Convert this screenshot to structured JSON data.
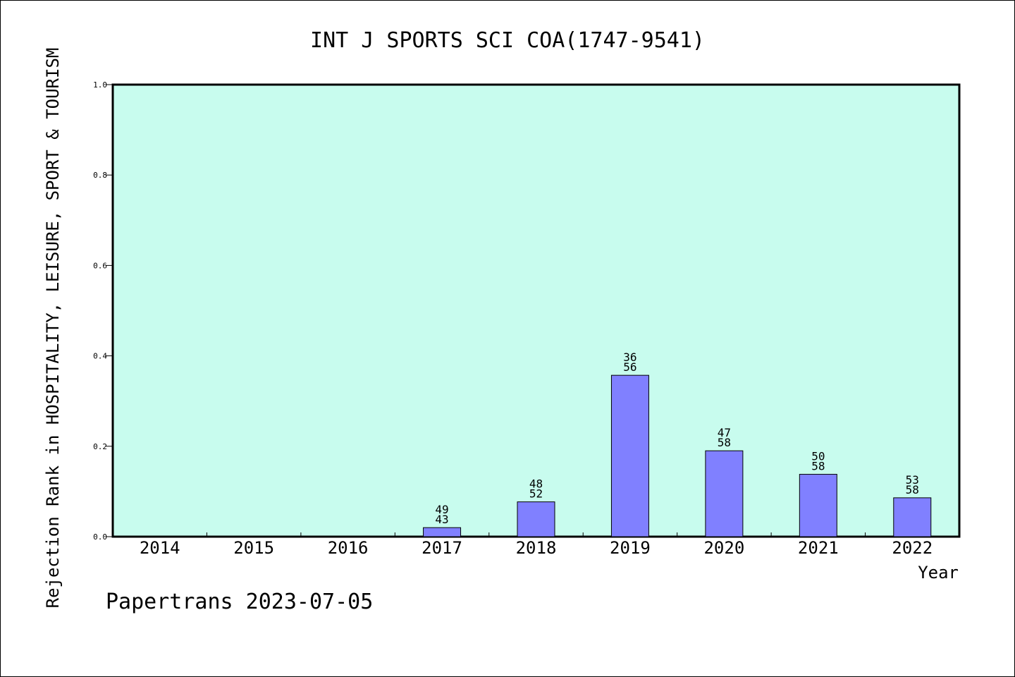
{
  "chart_data": {
    "type": "bar",
    "title": "INT J SPORTS SCI COA(1747-9541)",
    "ylabel": "Rejection Rank in HOSPITALITY, LEISURE, SPORT & TOURISM",
    "xlabel": "Year",
    "ylim": [
      0,
      1.0
    ],
    "yticks": [
      "0.0",
      "0.2",
      "0.4",
      "0.6",
      "0.8",
      "1.0"
    ],
    "categories": [
      "2014",
      "2015",
      "2016",
      "2017",
      "2018",
      "2019",
      "2020",
      "2021",
      "2022"
    ],
    "values": [
      null,
      null,
      null,
      0.02,
      0.077,
      0.357,
      0.19,
      0.138,
      0.086
    ],
    "bar_labels": [
      null,
      null,
      null,
      [
        "49",
        "43"
      ],
      [
        "48",
        "52"
      ],
      [
        "36",
        "56"
      ],
      [
        "47",
        "58"
      ],
      [
        "50",
        "58"
      ],
      [
        "53",
        "58"
      ]
    ],
    "colors": {
      "plot_bg": "#c8fcee",
      "bar": "#8080ff"
    },
    "grid": false,
    "legend": null
  },
  "footer": "Papertrans 2023-07-05"
}
